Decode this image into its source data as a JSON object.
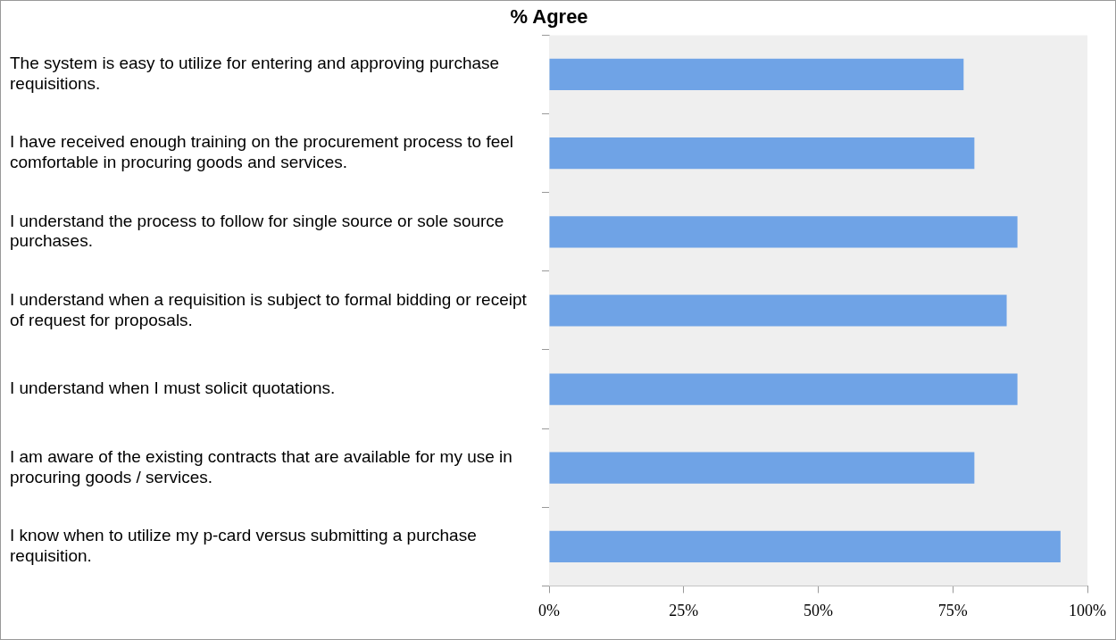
{
  "chart_data": {
    "type": "bar",
    "orientation": "horizontal",
    "title": "% Agree",
    "categories": [
      "The system is easy to utilize for entering and approving purchase requisitions.",
      "I have received enough training on the procurement process to feel comfortable in procuring goods and services.",
      "I understand the process to follow for single source or sole source purchases.",
      "I understand when a requisition is subject to formal bidding or receipt of request for proposals.",
      "I understand when I must solicit quotations.",
      "I am aware of the existing contracts that are available for my use in procuring goods / services.",
      "I know when to utilize my p-card versus submitting a purchase requisition."
    ],
    "values": [
      77,
      79,
      87,
      85,
      87,
      79,
      95
    ],
    "color": "#6fa3e6",
    "xlim": [
      0,
      100
    ],
    "xticks": [
      {
        "value": 0,
        "label": "0%"
      },
      {
        "value": 25,
        "label": "25%"
      },
      {
        "value": 50,
        "label": "50%"
      },
      {
        "value": 75,
        "label": "75%"
      },
      {
        "value": 100,
        "label": "100%"
      }
    ],
    "grid": false,
    "legend": false
  }
}
